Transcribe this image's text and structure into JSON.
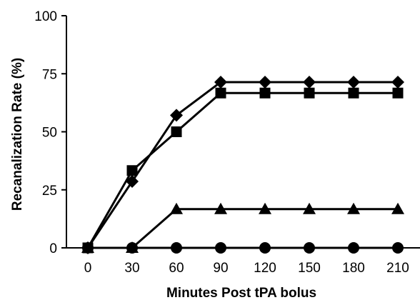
{
  "chart_data": {
    "type": "line",
    "title": "",
    "xlabel": "Minutes Post tPA bolus",
    "ylabel": "Recanalization Rate (%)",
    "x": [
      0,
      30,
      60,
      90,
      120,
      150,
      180,
      210
    ],
    "xticks": [
      0,
      30,
      60,
      90,
      120,
      150,
      180,
      210
    ],
    "yticks": [
      0,
      25,
      50,
      75,
      100
    ],
    "xlim": [
      0,
      210
    ],
    "ylim": [
      0,
      100
    ],
    "grid": false,
    "legend": "none",
    "series": [
      {
        "marker": "diamond",
        "color": "#000000",
        "values": [
          0,
          28.6,
          57.1,
          71.4,
          71.4,
          71.4,
          71.4,
          71.4
        ]
      },
      {
        "marker": "square",
        "color": "#000000",
        "values": [
          0,
          33.3,
          50,
          66.7,
          66.7,
          66.7,
          66.7,
          66.7
        ]
      },
      {
        "marker": "triangle",
        "color": "#000000",
        "values": [
          0,
          0,
          16.7,
          16.7,
          16.7,
          16.7,
          16.7,
          16.7
        ]
      },
      {
        "marker": "circle",
        "color": "#000000",
        "values": [
          0,
          0,
          0,
          0,
          0,
          0,
          0,
          0
        ]
      }
    ]
  }
}
